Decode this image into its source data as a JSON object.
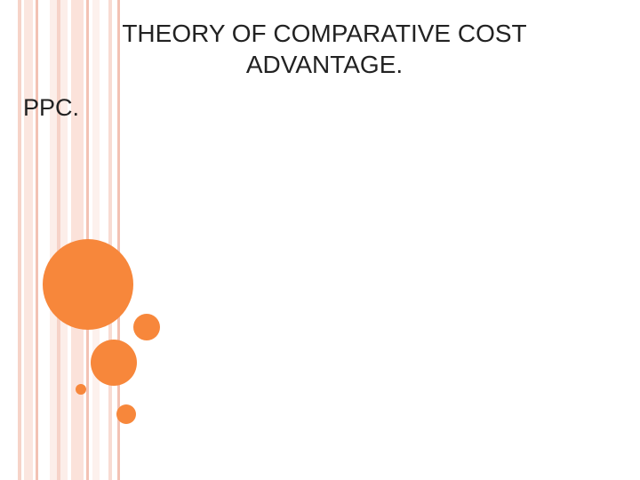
{
  "slide": {
    "title_lines": [
      "THEORY OF COMPARATIVE COST",
      "ADVANTAGE."
    ],
    "body": "PPC."
  }
}
